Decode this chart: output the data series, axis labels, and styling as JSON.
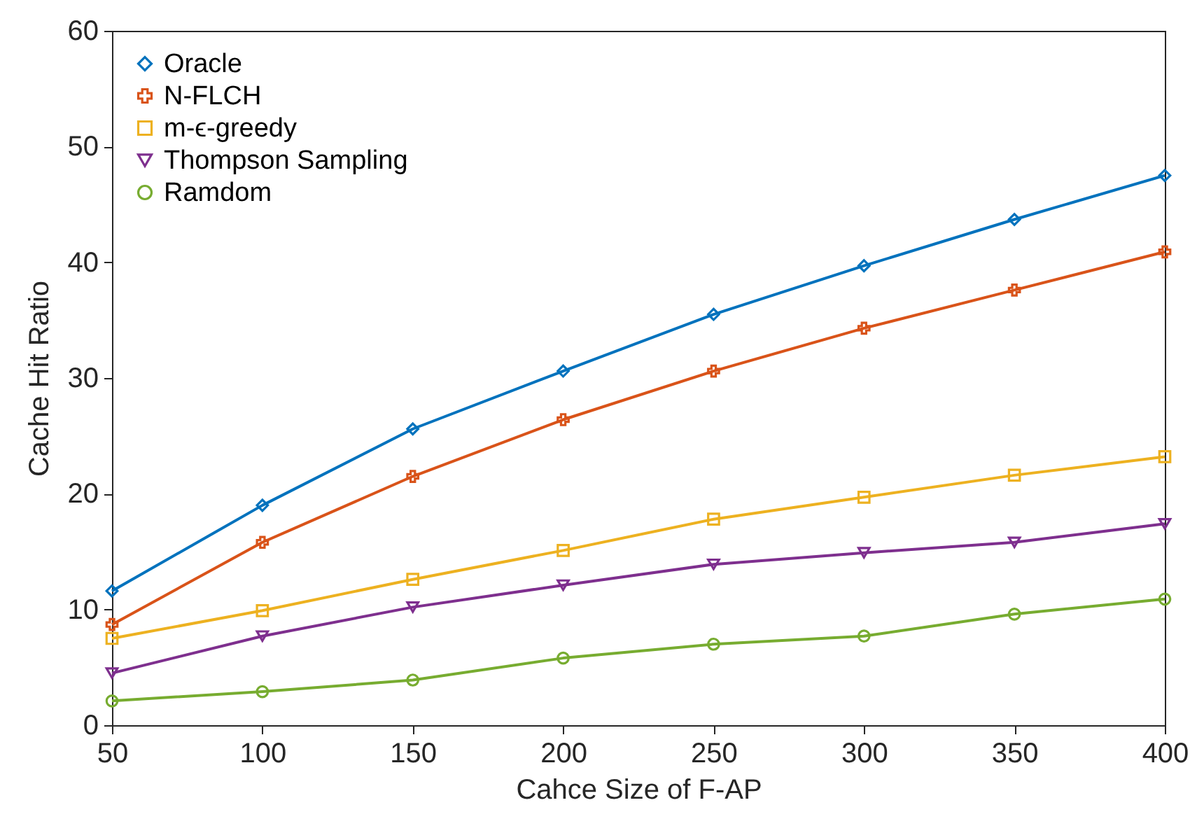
{
  "chart_data": {
    "type": "line",
    "xlabel": "Cahce Size of F-AP",
    "ylabel": "Cache Hit Ratio",
    "x": [
      50,
      100,
      150,
      200,
      250,
      300,
      350,
      400
    ],
    "series": [
      {
        "name": "Oracle",
        "color": "#0072bd",
        "marker": "diamond",
        "values": [
          11.6,
          19.0,
          25.6,
          30.6,
          35.5,
          39.7,
          43.7,
          47.5
        ]
      },
      {
        "name": "N-FLCH",
        "color": "#d95319",
        "marker": "cross",
        "values": [
          8.7,
          15.8,
          21.5,
          26.4,
          30.6,
          34.3,
          37.6,
          40.9
        ]
      },
      {
        "name": "m-ϵ-greedy",
        "color": "#edb120",
        "marker": "square",
        "values": [
          7.5,
          9.9,
          12.6,
          15.1,
          17.8,
          19.7,
          21.6,
          23.2
        ]
      },
      {
        "name": "Thompson Sampling",
        "color": "#7e2f8e",
        "marker": "triangle",
        "values": [
          4.5,
          7.7,
          10.2,
          12.1,
          13.9,
          14.9,
          15.8,
          17.4
        ]
      },
      {
        "name": "Ramdom",
        "color": "#77ac30",
        "marker": "circle",
        "values": [
          2.1,
          2.9,
          3.9,
          5.8,
          7.0,
          7.7,
          9.6,
          10.9
        ]
      }
    ],
    "xlim": [
      50,
      400
    ],
    "xticks": [
      50,
      100,
      150,
      200,
      250,
      300,
      350,
      400
    ],
    "ylim": [
      0,
      60
    ],
    "yticks": [
      0,
      10,
      20,
      30,
      40,
      50,
      60
    ],
    "grid": false,
    "legend": "top left",
    "line_style": "solid"
  }
}
